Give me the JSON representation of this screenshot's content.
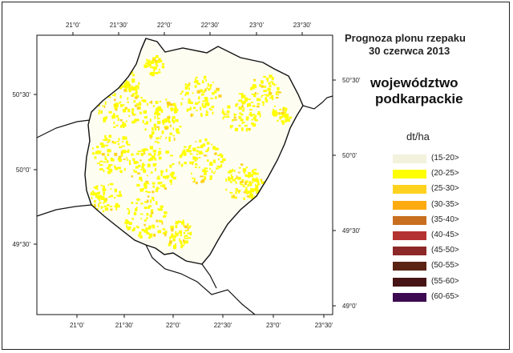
{
  "title": {
    "line1": "Prognoza plonu rzepaku",
    "line2": "30 czerwca 2013"
  },
  "region": {
    "line1": "województwo",
    "line2": "podkarpackie"
  },
  "legend": {
    "unit": "dt/ha",
    "items": [
      {
        "label": "(15-20>",
        "color": "#f3f2dc"
      },
      {
        "label": "(20-25>",
        "color": "#ffff00"
      },
      {
        "label": "(25-30>",
        "color": "#ffd21e"
      },
      {
        "label": "(30-35>",
        "color": "#ffaa0f"
      },
      {
        "label": "(35-40>",
        "color": "#c86e1e"
      },
      {
        "label": "(40-45>",
        "color": "#b43232"
      },
      {
        "label": "(45-50>",
        "color": "#8c2828"
      },
      {
        "label": "(50-55>",
        "color": "#5a2314"
      },
      {
        "label": "(55-60>",
        "color": "#461414"
      },
      {
        "label": "(60-65>",
        "color": "#3c0a50"
      }
    ]
  },
  "axes": {
    "top_lon": [
      "21°0'",
      "21°30'",
      "22°0'",
      "22°30'",
      "23°0'",
      "23°30'"
    ],
    "bottom_lon": [
      "21°0'",
      "21°30'",
      "22°0'",
      "22°30'",
      "23°0'",
      "23°30'"
    ],
    "left_lat": [
      "50°30'",
      "50°0'",
      "49°30'"
    ],
    "right_lat": [
      "50°30'",
      "50°0'",
      "49°30'",
      "49°0'"
    ]
  },
  "colors": {
    "background": "#ffffff",
    "boundary": "#111111",
    "region_fill": "#fdfdf2"
  }
}
